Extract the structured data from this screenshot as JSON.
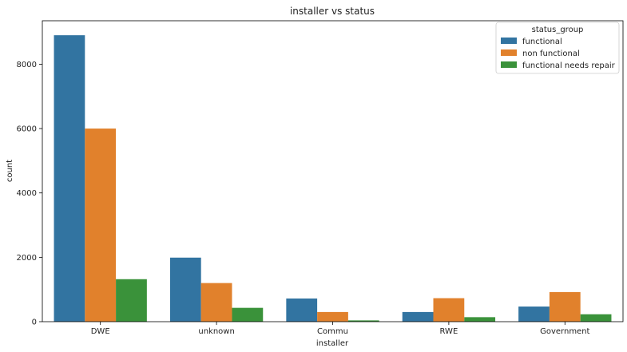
{
  "chart_data": {
    "type": "bar",
    "title": "installer vs status",
    "xlabel": "installer",
    "ylabel": "count",
    "categories": [
      "DWE",
      "unknown",
      "Commu",
      "RWE",
      "Government"
    ],
    "series": [
      {
        "name": "functional",
        "color": "#3274a1",
        "values": [
          8900,
          1990,
          720,
          300,
          470
        ]
      },
      {
        "name": "non functional",
        "color": "#e1812c",
        "values": [
          6000,
          1200,
          300,
          730,
          920
        ]
      },
      {
        "name": "functional needs repair",
        "color": "#3a923a",
        "values": [
          1320,
          430,
          40,
          140,
          230
        ]
      }
    ],
    "ylim": [
      0,
      9350
    ],
    "yticks": [
      0,
      2000,
      4000,
      6000,
      8000
    ],
    "legend": {
      "title": "status_group",
      "position": "top-right"
    },
    "grid": false
  }
}
